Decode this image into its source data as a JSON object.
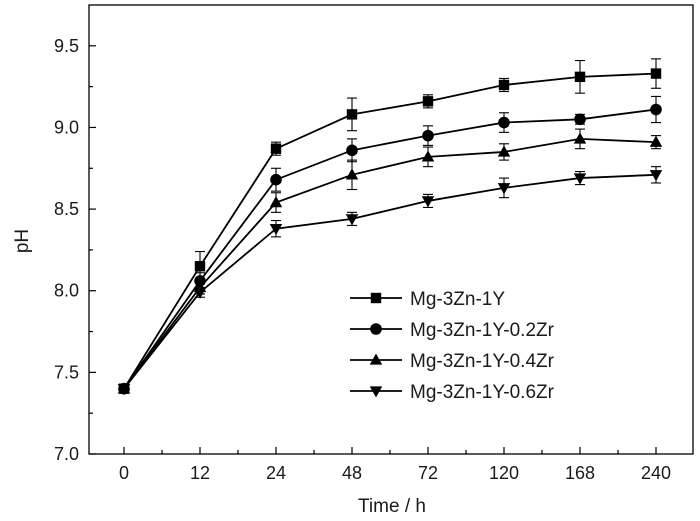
{
  "chart_data": {
    "type": "line",
    "title": "",
    "xlabel": "Time / h",
    "ylabel": "pH",
    "categories": [
      "0",
      "12",
      "24",
      "48",
      "72",
      "120",
      "168",
      "240"
    ],
    "ylim": [
      7.0,
      9.75
    ],
    "yticks": [
      7.0,
      7.5,
      8.0,
      8.5,
      9.0,
      9.5
    ],
    "ytick_labels": [
      "7.0",
      "7.5",
      "8.0",
      "8.5",
      "9.0",
      "9.5"
    ],
    "grid": false,
    "legend_position": "center-right",
    "series": [
      {
        "name": "Mg-3Zn-1Y",
        "marker": "square",
        "values": [
          7.4,
          8.15,
          8.87,
          9.08,
          9.16,
          9.26,
          9.31,
          9.33
        ],
        "errors": [
          0.0,
          0.09,
          0.04,
          0.1,
          0.04,
          0.04,
          0.1,
          0.09
        ]
      },
      {
        "name": "Mg-3Zn-1Y-0.2Zr",
        "marker": "circle",
        "values": [
          7.4,
          8.06,
          8.68,
          8.86,
          8.95,
          9.03,
          9.05,
          9.11
        ],
        "errors": [
          0.0,
          0.05,
          0.07,
          0.07,
          0.06,
          0.06,
          0.03,
          0.08
        ]
      },
      {
        "name": "Mg-3Zn-1Y-0.4Zr",
        "marker": "triangle-up",
        "values": [
          7.4,
          8.02,
          8.54,
          8.71,
          8.82,
          8.85,
          8.93,
          8.91
        ],
        "errors": [
          0.0,
          0.04,
          0.06,
          0.09,
          0.06,
          0.05,
          0.06,
          0.04
        ]
      },
      {
        "name": "Mg-3Zn-1Y-0.6Zr",
        "marker": "triangle-down",
        "values": [
          7.4,
          7.99,
          8.38,
          8.44,
          8.55,
          8.63,
          8.69,
          8.71
        ],
        "errors": [
          0.0,
          0.03,
          0.05,
          0.04,
          0.04,
          0.06,
          0.04,
          0.05
        ]
      }
    ]
  }
}
